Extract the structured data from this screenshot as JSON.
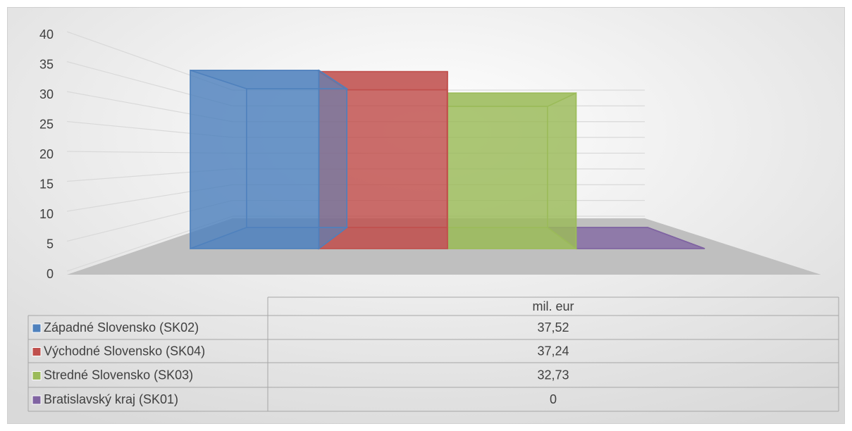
{
  "chart_data": {
    "type": "bar3d",
    "categories": [
      "mil. eur"
    ],
    "series": [
      {
        "name": "Západné Slovensko (SK02)",
        "color": "#4f81bd",
        "values": [
          37.52
        ],
        "value_labels": [
          "37,52"
        ]
      },
      {
        "name": "Východné Slovensko (SK04)",
        "color": "#c0504d",
        "values": [
          37.24
        ],
        "value_labels": [
          "37,24"
        ]
      },
      {
        "name": "Stredné Slovensko  (SK03)",
        "color": "#9bbb59",
        "values": [
          32.73
        ],
        "value_labels": [
          "32,73"
        ]
      },
      {
        "name": "Bratislavský kraj (SK01)",
        "color": "#8064a2",
        "values": [
          0
        ],
        "value_labels": [
          "0"
        ]
      }
    ],
    "ylim": [
      0,
      40
    ],
    "yticks": [
      0,
      5,
      10,
      15,
      20,
      25,
      30,
      35,
      40
    ],
    "grid": true
  }
}
